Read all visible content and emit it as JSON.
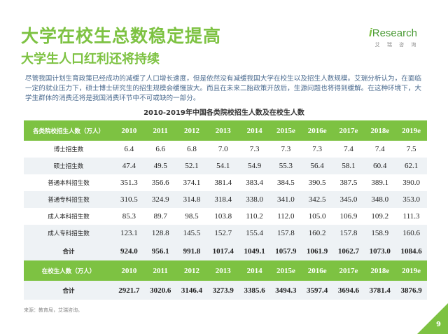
{
  "title": "大学在校生总数稳定提高",
  "subtitle": "大学生人口红利还将持续",
  "logo": {
    "brand_i": "i",
    "brand_rest": "Research",
    "sub": "艾 瑞 咨 询"
  },
  "paragraph": "尽管我国计划生育政策已经成功的减缓了人口增长速度，但是依然没有减缓我国大学在校生以及招生人数规模。艾瑞分析认为，在面临一定的就业压力下，硕士博士研究生的招生规模会缓慢放大。而且在未来二胎政策开放后，生源问题也将得到缓解。在这种环境下，大学生群体的消费还将是我国消费环节中不可或缺的一部分。",
  "table_title": "2010-2019年中国各类院校招生人数及在校生人数",
  "enroll_header": {
    "label": "各类院校招生人数（万人）",
    "years": [
      "2010",
      "2011",
      "2012",
      "2013",
      "2014",
      "2015e",
      "2016e",
      "2017e",
      "2018e",
      "2019e"
    ]
  },
  "enroll_rows": [
    {
      "label": "博士招生数",
      "values": [
        "6.4",
        "6.6",
        "6.8",
        "7.0",
        "7.3",
        "7.3",
        "7.3",
        "7.4",
        "7.4",
        "7.5"
      ]
    },
    {
      "label": "硕士招生数",
      "values": [
        "47.4",
        "49.5",
        "52.1",
        "54.1",
        "54.9",
        "55.3",
        "56.4",
        "58.1",
        "60.4",
        "62.1"
      ]
    },
    {
      "label": "普通本科招生数",
      "values": [
        "351.3",
        "356.6",
        "374.1",
        "381.4",
        "383.4",
        "384.5",
        "390.5",
        "387.5",
        "389.1",
        "390.0"
      ]
    },
    {
      "label": "普通专科招生数",
      "values": [
        "310.5",
        "324.9",
        "314.8",
        "318.4",
        "338.0",
        "341.0",
        "342.5",
        "345.0",
        "348.0",
        "353.0"
      ]
    },
    {
      "label": "成人本科招生数",
      "values": [
        "85.3",
        "89.7",
        "98.5",
        "103.8",
        "110.2",
        "112.0",
        "105.0",
        "106.9",
        "109.2",
        "111.3"
      ]
    },
    {
      "label": "成人专科招生数",
      "values": [
        "123.1",
        "128.8",
        "145.5",
        "152.7",
        "155.4",
        "157.8",
        "160.2",
        "157.8",
        "158.9",
        "160.6"
      ]
    }
  ],
  "enroll_total": {
    "label": "合计",
    "values": [
      "924.0",
      "956.1",
      "991.8",
      "1017.4",
      "1049.1",
      "1057.9",
      "1061.9",
      "1062.7",
      "1073.0",
      "1084.6"
    ]
  },
  "students_header": {
    "label": "在校生人数（万人）",
    "years": [
      "2010",
      "2011",
      "2012",
      "2013",
      "2014",
      "2015e",
      "2016e",
      "2017e",
      "2018e",
      "2019e"
    ]
  },
  "students_total": {
    "label": "合计",
    "values": [
      "2921.7",
      "3020.6",
      "3146.4",
      "3273.9",
      "3385.6",
      "3494.3",
      "3597.4",
      "3694.6",
      "3781.4",
      "3876.9"
    ]
  },
  "source": "来源：教育局，艾瑞咨询。",
  "page_number": "9",
  "colors": {
    "accent": "#7dc242",
    "row_alt": "#eef2f5",
    "paragraph": "#4b6b8f"
  }
}
